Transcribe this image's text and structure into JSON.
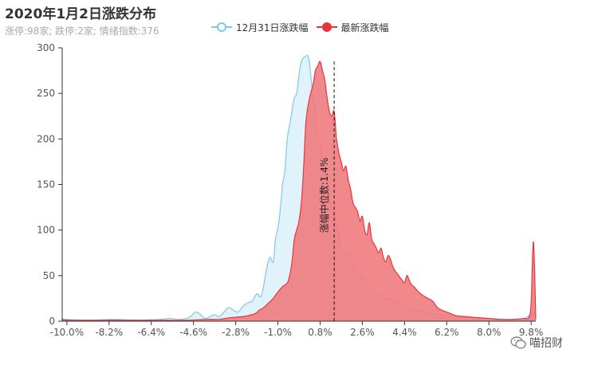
{
  "header": {
    "title": "2020年1月2日涨跌分布",
    "subtitle": "涨停:98家; 跌停:2家; 情绪指数:376"
  },
  "watermark": {
    "text": "喵招财"
  },
  "colors": {
    "series1": "#7ec8e9",
    "series1_fill": "#e0f3fb",
    "series2": "#e8353c",
    "series2_fill": "#f07b7f",
    "axis": "#333333",
    "text": "#555555"
  },
  "chart_data": {
    "type": "area",
    "title": "2020年1月2日涨跌分布",
    "subtitle": "涨停:98家; 跌停:2家; 情绪指数:376",
    "legend_position": "top-center",
    "xlim": [
      -10.2,
      10.0
    ],
    "ylim": [
      0,
      300
    ],
    "yticks": [
      0,
      50,
      100,
      150,
      200,
      250,
      300
    ],
    "xtick_labels": [
      "-10.0%",
      "-8.2%",
      "-6.4%",
      "-4.6%",
      "-2.8%",
      "-1.0%",
      "0.8%",
      "2.6%",
      "4.4%",
      "6.2%",
      "8.0%",
      "9.8%"
    ],
    "xtick_values": [
      -10.0,
      -8.2,
      -6.4,
      -4.6,
      -2.8,
      -1.0,
      0.8,
      2.6,
      4.4,
      6.2,
      8.0,
      9.8
    ],
    "grid": false,
    "series": [
      {
        "name": "12月31日涨跌幅",
        "points": [
          [
            -10.2,
            3
          ],
          [
            -10.0,
            2
          ],
          [
            -9.0,
            1
          ],
          [
            -8.0,
            2
          ],
          [
            -7.0,
            1
          ],
          [
            -6.0,
            2
          ],
          [
            -5.6,
            3
          ],
          [
            -5.2,
            2
          ],
          [
            -4.8,
            4
          ],
          [
            -4.5,
            10
          ],
          [
            -4.3,
            7
          ],
          [
            -4.1,
            3
          ],
          [
            -3.9,
            5
          ],
          [
            -3.7,
            7
          ],
          [
            -3.5,
            5
          ],
          [
            -3.3,
            10
          ],
          [
            -3.1,
            15
          ],
          [
            -2.9,
            12
          ],
          [
            -2.7,
            10
          ],
          [
            -2.5,
            16
          ],
          [
            -2.3,
            20
          ],
          [
            -2.1,
            22
          ],
          [
            -1.9,
            30
          ],
          [
            -1.7,
            28
          ],
          [
            -1.5,
            55
          ],
          [
            -1.35,
            70
          ],
          [
            -1.2,
            65
          ],
          [
            -1.1,
            90
          ],
          [
            -0.95,
            110
          ],
          [
            -0.8,
            150
          ],
          [
            -0.7,
            165
          ],
          [
            -0.6,
            200
          ],
          [
            -0.5,
            215
          ],
          [
            -0.4,
            230
          ],
          [
            -0.3,
            245
          ],
          [
            -0.2,
            250
          ],
          [
            -0.1,
            270
          ],
          [
            0.0,
            285
          ],
          [
            0.15,
            290
          ],
          [
            0.3,
            290
          ],
          [
            0.4,
            270
          ],
          [
            0.5,
            245
          ],
          [
            0.6,
            230
          ],
          [
            0.7,
            200
          ],
          [
            0.8,
            190
          ],
          [
            0.9,
            180
          ],
          [
            1.0,
            170
          ],
          [
            1.1,
            150
          ],
          [
            1.2,
            140
          ],
          [
            1.3,
            125
          ],
          [
            1.4,
            120
          ],
          [
            1.5,
            105
          ],
          [
            1.6,
            95
          ],
          [
            1.7,
            80
          ],
          [
            1.8,
            78
          ],
          [
            2.0,
            70
          ],
          [
            2.2,
            62
          ],
          [
            2.4,
            55
          ],
          [
            2.6,
            50
          ],
          [
            2.8,
            42
          ],
          [
            3.0,
            35
          ],
          [
            3.2,
            30
          ],
          [
            3.4,
            28
          ],
          [
            3.6,
            25
          ],
          [
            3.8,
            24
          ],
          [
            4.0,
            22
          ],
          [
            4.2,
            20
          ],
          [
            4.4,
            18
          ],
          [
            4.6,
            15
          ],
          [
            4.8,
            13
          ],
          [
            5.0,
            12
          ],
          [
            5.3,
            10
          ],
          [
            5.6,
            8
          ],
          [
            6.0,
            7
          ],
          [
            6.5,
            5
          ],
          [
            7.0,
            4
          ],
          [
            7.5,
            3
          ],
          [
            8.0,
            3
          ],
          [
            8.5,
            2
          ],
          [
            9.0,
            2
          ],
          [
            9.5,
            3
          ],
          [
            9.8,
            8
          ],
          [
            9.9,
            10
          ],
          [
            10.0,
            2
          ]
        ]
      },
      {
        "name": "最新涨跌幅",
        "points": [
          [
            -10.2,
            2
          ],
          [
            -10.0,
            1
          ],
          [
            -9.0,
            1
          ],
          [
            -8.0,
            1
          ],
          [
            -7.0,
            1
          ],
          [
            -6.0,
            1
          ],
          [
            -5.0,
            1
          ],
          [
            -4.0,
            2
          ],
          [
            -3.5,
            2
          ],
          [
            -3.0,
            4
          ],
          [
            -2.5,
            5
          ],
          [
            -2.0,
            8
          ],
          [
            -1.8,
            12
          ],
          [
            -1.6,
            15
          ],
          [
            -1.4,
            20
          ],
          [
            -1.2,
            25
          ],
          [
            -1.0,
            32
          ],
          [
            -0.8,
            38
          ],
          [
            -0.6,
            42
          ],
          [
            -0.5,
            50
          ],
          [
            -0.4,
            65
          ],
          [
            -0.3,
            90
          ],
          [
            -0.2,
            100
          ],
          [
            -0.1,
            110
          ],
          [
            0.0,
            130
          ],
          [
            0.1,
            170
          ],
          [
            0.2,
            220
          ],
          [
            0.35,
            245
          ],
          [
            0.5,
            260
          ],
          [
            0.6,
            275
          ],
          [
            0.7,
            280
          ],
          [
            0.8,
            285
          ],
          [
            0.9,
            275
          ],
          [
            1.0,
            265
          ],
          [
            1.1,
            245
          ],
          [
            1.2,
            230
          ],
          [
            1.3,
            225
          ],
          [
            1.4,
            230
          ],
          [
            1.5,
            200
          ],
          [
            1.6,
            185
          ],
          [
            1.7,
            175
          ],
          [
            1.8,
            165
          ],
          [
            1.9,
            170
          ],
          [
            2.0,
            155
          ],
          [
            2.1,
            145
          ],
          [
            2.2,
            130
          ],
          [
            2.3,
            125
          ],
          [
            2.4,
            120
          ],
          [
            2.5,
            110
          ],
          [
            2.6,
            115
          ],
          [
            2.7,
            100
          ],
          [
            2.8,
            95
          ],
          [
            2.9,
            108
          ],
          [
            3.0,
            90
          ],
          [
            3.1,
            85
          ],
          [
            3.2,
            80
          ],
          [
            3.3,
            75
          ],
          [
            3.4,
            80
          ],
          [
            3.5,
            70
          ],
          [
            3.6,
            65
          ],
          [
            3.7,
            72
          ],
          [
            3.8,
            68
          ],
          [
            3.9,
            60
          ],
          [
            4.0,
            55
          ],
          [
            4.1,
            52
          ],
          [
            4.2,
            48
          ],
          [
            4.3,
            45
          ],
          [
            4.4,
            42
          ],
          [
            4.5,
            50
          ],
          [
            4.6,
            45
          ],
          [
            4.7,
            40
          ],
          [
            4.8,
            38
          ],
          [
            4.9,
            35
          ],
          [
            5.0,
            32
          ],
          [
            5.2,
            28
          ],
          [
            5.4,
            25
          ],
          [
            5.6,
            22
          ],
          [
            5.8,
            15
          ],
          [
            6.0,
            12
          ],
          [
            6.2,
            10
          ],
          [
            6.4,
            8
          ],
          [
            6.6,
            6
          ],
          [
            7.0,
            5
          ],
          [
            7.5,
            4
          ],
          [
            8.0,
            3
          ],
          [
            8.5,
            2
          ],
          [
            9.0,
            2
          ],
          [
            9.5,
            3
          ],
          [
            9.7,
            4
          ],
          [
            9.8,
            20
          ],
          [
            9.9,
            87
          ],
          [
            10.0,
            2
          ]
        ]
      }
    ],
    "markline": {
      "x": 1.4,
      "label": "涨幅中位数:1.4%"
    }
  }
}
